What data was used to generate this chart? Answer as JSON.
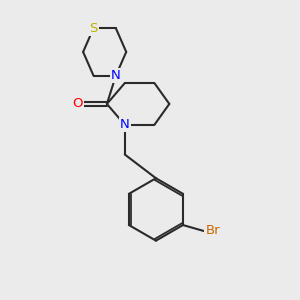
{
  "background_color": "#ebebeb",
  "bond_color": "#2a2a2a",
  "atom_colors": {
    "N": "#0000ff",
    "O": "#ff0000",
    "S": "#b8b400",
    "Br": "#cc6600"
  },
  "bond_width": 1.5,
  "font_size": 9.5,
  "figsize": [
    3.0,
    3.0
  ],
  "dpi": 100,
  "xlim": [
    0,
    10
  ],
  "ylim": [
    0,
    10
  ]
}
